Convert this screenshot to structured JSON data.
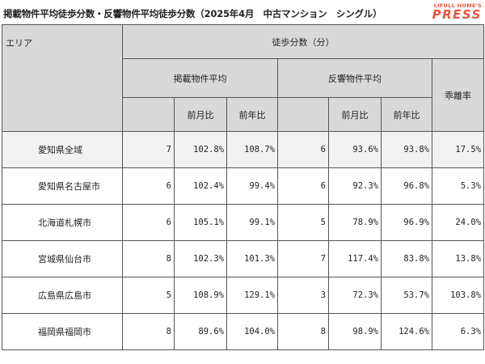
{
  "title": "掲載物件平均徒歩分数・反響物件平均徒歩分数（2025年4月　中古マンション　シングル）",
  "logo": {
    "small": "LIFULL HOME'S",
    "big": "PRESS"
  },
  "table": {
    "header": {
      "area": "エリア",
      "walking": "徒歩分数（分）",
      "listing_avg": "掲載物件平均",
      "response_avg": "反響物件平均",
      "divergence": "乖離率",
      "mom": "前月比",
      "yoy": "前年比"
    },
    "rows": [
      {
        "area": "愛知県全域",
        "listing": "7",
        "listing_mom": "102.8%",
        "listing_yoy": "108.7%",
        "response": "6",
        "response_mom": "93.6%",
        "response_yoy": "93.8%",
        "divergence": "17.5%"
      },
      {
        "area": "愛知県名古屋市",
        "listing": "6",
        "listing_mom": "102.4%",
        "listing_yoy": "99.4%",
        "response": "6",
        "response_mom": "92.3%",
        "response_yoy": "96.8%",
        "divergence": "5.3%"
      },
      {
        "area": "北海道札幌市",
        "listing": "6",
        "listing_mom": "105.1%",
        "listing_yoy": "99.1%",
        "response": "5",
        "response_mom": "78.9%",
        "response_yoy": "96.9%",
        "divergence": "24.0%"
      },
      {
        "area": "宮城県仙台市",
        "listing": "8",
        "listing_mom": "102.3%",
        "listing_yoy": "101.3%",
        "response": "7",
        "response_mom": "117.4%",
        "response_yoy": "83.8%",
        "divergence": "13.8%"
      },
      {
        "area": "広島県広島市",
        "listing": "5",
        "listing_mom": "108.9%",
        "listing_yoy": "129.1%",
        "response": "3",
        "response_mom": "72.3%",
        "response_yoy": "53.7%",
        "divergence": "103.8%"
      },
      {
        "area": "福岡県福岡市",
        "listing": "8",
        "listing_mom": "89.6%",
        "listing_yoy": "104.0%",
        "response": "8",
        "response_mom": "98.9%",
        "response_yoy": "124.6%",
        "divergence": "6.3%"
      }
    ]
  }
}
